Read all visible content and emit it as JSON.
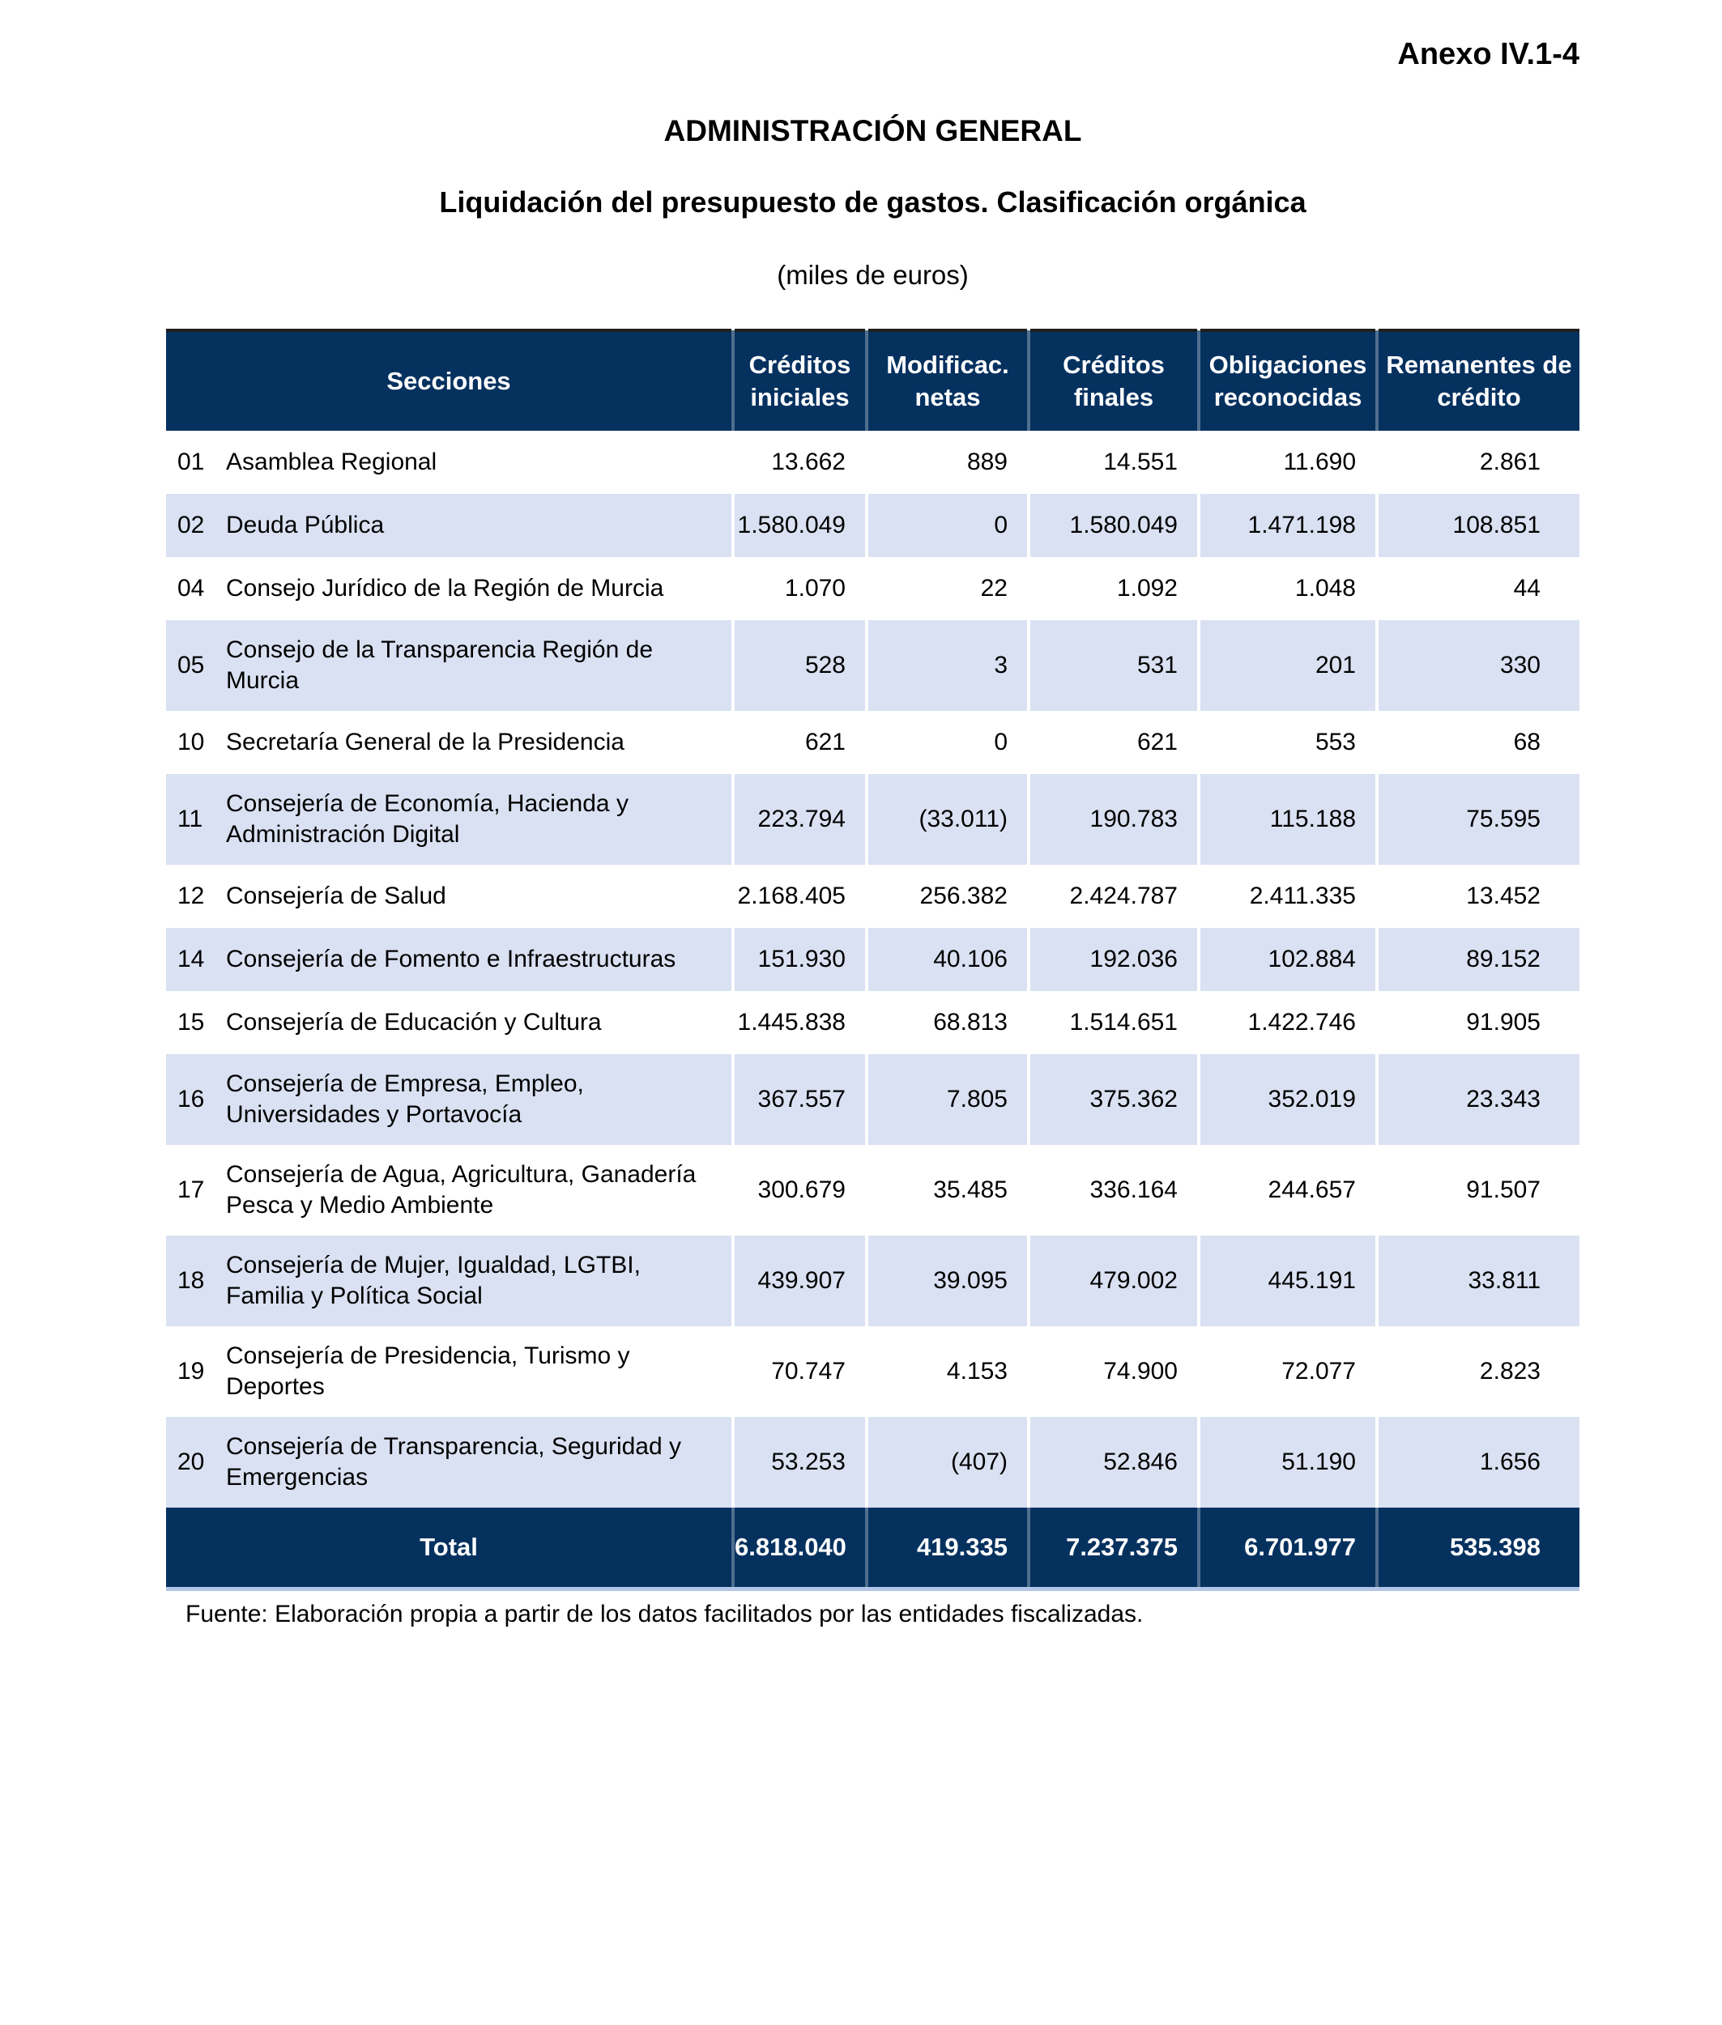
{
  "page": {
    "annex": "Anexo IV.1-4",
    "title": "ADMINISTRACIÓN GENERAL",
    "subtitle": "Liquidación del presupuesto de gastos. Clasificación orgánica",
    "units": "(miles de euros)",
    "source": "Fuente: Elaboración propia a partir de los datos facilitados por las entidades fiscalizadas."
  },
  "colors": {
    "header_bg": "#05315f",
    "header_text": "#ffffff",
    "alt_row_bg": "#d9e1f2",
    "table_top_border": "#1f1f1f",
    "table_bottom_border": "#b4c6e7",
    "text_color": "#000000"
  },
  "table": {
    "columns": [
      "Secciones",
      "Créditos iniciales",
      "Modificac. netas",
      "Créditos finales",
      "Obligaciones reconocidas",
      "Remanentes de crédito"
    ],
    "rows": [
      {
        "code": "01",
        "name": "Asamblea Regional",
        "values": [
          "13.662",
          "889",
          "14.551",
          "11.690",
          "2.861"
        ]
      },
      {
        "code": "02",
        "name": "Deuda Pública",
        "values": [
          "1.580.049",
          "0",
          "1.580.049",
          "1.471.198",
          "108.851"
        ]
      },
      {
        "code": "04",
        "name": "Consejo Jurídico de la Región de Murcia",
        "values": [
          "1.070",
          "22",
          "1.092",
          "1.048",
          "44"
        ]
      },
      {
        "code": "05",
        "name": "Consejo de la Transparencia Región de Murcia",
        "values": [
          "528",
          "3",
          "531",
          "201",
          "330"
        ]
      },
      {
        "code": "10",
        "name": "Secretaría General de la Presidencia",
        "values": [
          "621",
          "0",
          "621",
          "553",
          "68"
        ]
      },
      {
        "code": "11",
        "name": "Consejería de Economía, Hacienda y Administración Digital",
        "values": [
          "223.794",
          "(33.011)",
          "190.783",
          "115.188",
          "75.595"
        ]
      },
      {
        "code": "12",
        "name": "Consejería de Salud",
        "values": [
          "2.168.405",
          "256.382",
          "2.424.787",
          "2.411.335",
          "13.452"
        ]
      },
      {
        "code": "14",
        "name": "Consejería de Fomento e Infraestructuras",
        "values": [
          "151.930",
          "40.106",
          "192.036",
          "102.884",
          "89.152"
        ]
      },
      {
        "code": "15",
        "name": "Consejería de Educación y Cultura",
        "values": [
          "1.445.838",
          "68.813",
          "1.514.651",
          "1.422.746",
          "91.905"
        ]
      },
      {
        "code": "16",
        "name": "Consejería de Empresa, Empleo, Universidades y Portavocía",
        "values": [
          "367.557",
          "7.805",
          "375.362",
          "352.019",
          "23.343"
        ]
      },
      {
        "code": "17",
        "name": "Consejería de Agua, Agricultura, Ganadería Pesca y Medio Ambiente",
        "values": [
          "300.679",
          "35.485",
          "336.164",
          "244.657",
          "91.507"
        ]
      },
      {
        "code": "18",
        "name": "Consejería de Mujer, Igualdad, LGTBI, Familia y Política Social",
        "values": [
          "439.907",
          "39.095",
          "479.002",
          "445.191",
          "33.811"
        ]
      },
      {
        "code": "19",
        "name": "Consejería de Presidencia, Turismo y Deportes",
        "values": [
          "70.747",
          "4.153",
          "74.900",
          "72.077",
          "2.823"
        ]
      },
      {
        "code": "20",
        "name": "Consejería de Transparencia, Seguridad y Emergencias",
        "values": [
          "53.253",
          "(407)",
          "52.846",
          "51.190",
          "1.656"
        ]
      }
    ],
    "total": {
      "label": "Total",
      "values": [
        "6.818.040",
        "419.335",
        "7.237.375",
        "6.701.977",
        "535.398"
      ]
    }
  }
}
